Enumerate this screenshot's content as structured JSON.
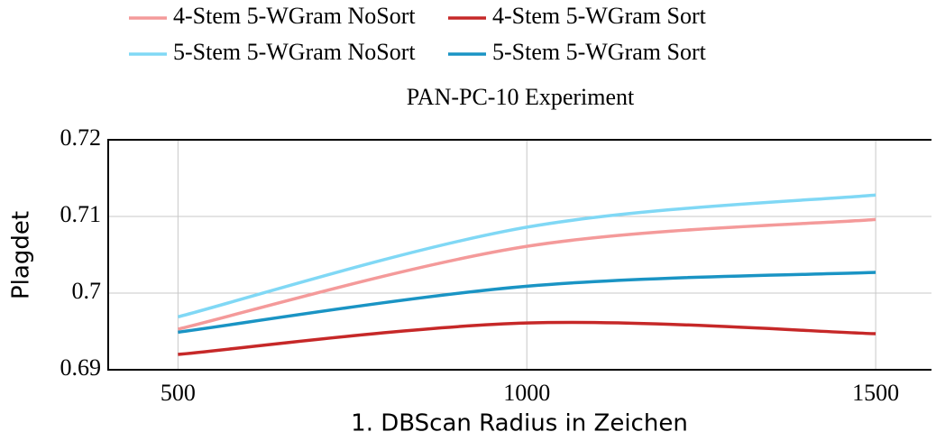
{
  "chart_data": {
    "type": "line",
    "title": "PAN-PC-10 Experiment",
    "x_label": "1. DBScan Radius in Zeichen",
    "y_label": "Plagdet",
    "x": [
      500,
      1000,
      1500
    ],
    "series": [
      {
        "name": "4-Stem 5-WGram NoSort",
        "color": "#f49a9a",
        "values": [
          0.6953,
          0.7061,
          0.7096
        ]
      },
      {
        "name": "4-Stem 5-WGram Sort",
        "color": "#c62828",
        "values": [
          0.692,
          0.6961,
          0.6947
        ]
      },
      {
        "name": "5-Stem 5-WGram NoSort",
        "color": "#80d8f5",
        "values": [
          0.6969,
          0.7086,
          0.7128
        ]
      },
      {
        "name": "5-Stem 5-WGram Sort",
        "color": "#1a94c4",
        "values": [
          0.6949,
          0.7009,
          0.7027
        ]
      }
    ],
    "xlim": [
      400,
      1580
    ],
    "ylim": [
      0.69,
      0.72
    ],
    "xticks": [
      500,
      1000,
      1500
    ],
    "yticks": [
      0.69,
      0.7,
      0.71,
      0.72
    ],
    "grid": true,
    "smooth": true
  }
}
